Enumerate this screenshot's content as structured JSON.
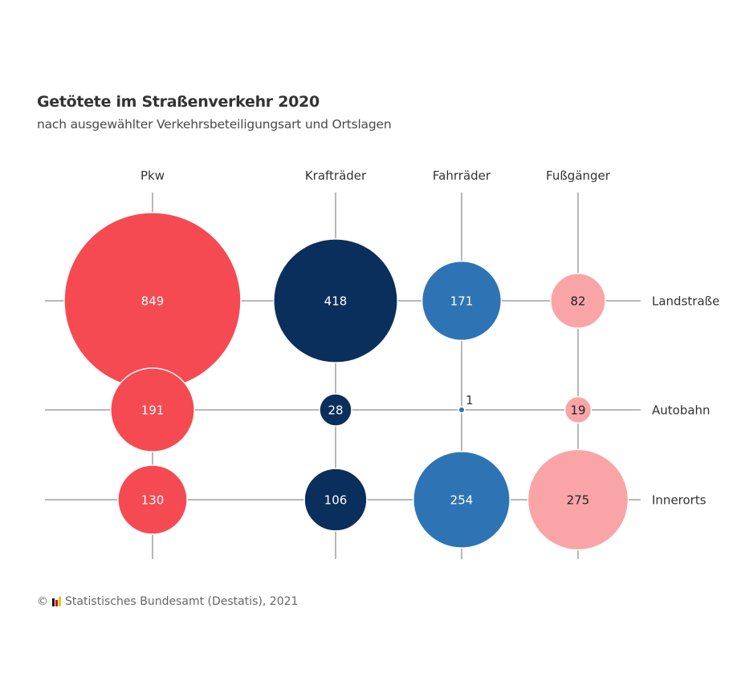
{
  "chart_data": {
    "type": "bubble-grid",
    "title": "Getötete im Straßenverkehr 2020",
    "subtitle": "nach ausgewählter Verkehrsbeteiligungsart und Ortslagen",
    "columns": [
      "Pkw",
      "Krafträder",
      "Fahrräder",
      "Fußgänger"
    ],
    "rows": [
      "Landstraße",
      "Autobahn",
      "Innerorts"
    ],
    "column_colors": [
      "#f54a52",
      "#0a2f5c",
      "#2e74b5",
      "#f9a5a8"
    ],
    "label_colors": [
      "#ffffff",
      "#ffffff",
      "#ffffff",
      "#222222"
    ],
    "series": [
      {
        "name": "Pkw",
        "values": [
          849,
          191,
          130
        ]
      },
      {
        "name": "Krafträder",
        "values": [
          418,
          28,
          106
        ]
      },
      {
        "name": "Fahrräder",
        "values": [
          171,
          1,
          254
        ]
      },
      {
        "name": "Fußgänger",
        "values": [
          82,
          19,
          275
        ]
      }
    ],
    "size_encoding": "area",
    "grid": true,
    "legend": "none"
  },
  "footer": {
    "copyright_symbol": "©",
    "source": "Statistisches Bundesamt (Destatis), 2021",
    "logo_colors": [
      "#111111",
      "#d0021b",
      "#f5c400"
    ]
  }
}
